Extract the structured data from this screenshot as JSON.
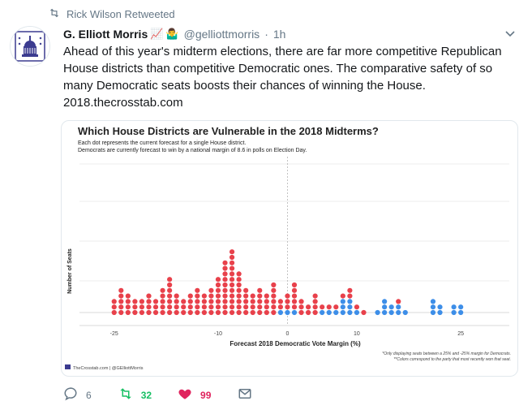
{
  "retweet_banner": {
    "text": "Rick Wilson Retweeted",
    "icon": "retweet-icon"
  },
  "author": {
    "name": "G. Elliott Morris",
    "emojis": [
      "📈",
      "🤷‍♂️"
    ],
    "handle": "@gelliottmorris",
    "separator": "·",
    "time": "1h"
  },
  "tweet": {
    "text": "Ahead of this year's midterm elections, there are far more competitive Republican House districts than competitive Democratic ones. The comparative safety of so many Democratic seats boosts their chances of winning the House.",
    "link": "2018.thecrosstab.com"
  },
  "chart_data": {
    "type": "scatter",
    "title": "Which House Districts are Vulnerable in the 2018 Midterms?",
    "subtitle_lines": [
      "Each dot represents the current forecast for a single House district.",
      "Democrats are currently forecast to win by a national margin of 8.6 in polls on Election Day."
    ],
    "xlabel": "Forecast 2018 Democratic Vote Margin (%)",
    "ylabel": "Number of Seats",
    "xlim": [
      -30,
      32
    ],
    "xticks": [
      -25,
      -10,
      0,
      10,
      25
    ],
    "note_lines": [
      "*Only displaying seats between a 25% and -25% margin for Democrats.",
      "**Colors correspond to the party that most recently won that seat."
    ],
    "source": "TheCrosstab.com | @GElliottMorris",
    "colors": {
      "republican": "#e8414b",
      "democratic": "#3d8ee8",
      "grid": "#e6e6e6",
      "zero_line": "#bbbbbb"
    },
    "columns": [
      {
        "x": -25,
        "red": 3,
        "blue": 0
      },
      {
        "x": -24,
        "red": 5,
        "blue": 0
      },
      {
        "x": -23,
        "red": 4,
        "blue": 0
      },
      {
        "x": -22,
        "red": 3,
        "blue": 0
      },
      {
        "x": -21,
        "red": 3,
        "blue": 0
      },
      {
        "x": -20,
        "red": 4,
        "blue": 0
      },
      {
        "x": -19,
        "red": 3,
        "blue": 0
      },
      {
        "x": -18,
        "red": 5,
        "blue": 0
      },
      {
        "x": -17,
        "red": 7,
        "blue": 0
      },
      {
        "x": -16,
        "red": 4,
        "blue": 0
      },
      {
        "x": -15,
        "red": 3,
        "blue": 0
      },
      {
        "x": -14,
        "red": 4,
        "blue": 0
      },
      {
        "x": -13,
        "red": 5,
        "blue": 0
      },
      {
        "x": -12,
        "red": 4,
        "blue": 0
      },
      {
        "x": -11,
        "red": 5,
        "blue": 0
      },
      {
        "x": -10,
        "red": 7,
        "blue": 0
      },
      {
        "x": -9,
        "red": 10,
        "blue": 0
      },
      {
        "x": -8,
        "red": 12,
        "blue": 0
      },
      {
        "x": -7,
        "red": 8,
        "blue": 0
      },
      {
        "x": -6,
        "red": 5,
        "blue": 0
      },
      {
        "x": -5,
        "red": 4,
        "blue": 0
      },
      {
        "x": -4,
        "red": 5,
        "blue": 0
      },
      {
        "x": -3,
        "red": 4,
        "blue": 0
      },
      {
        "x": -2,
        "red": 6,
        "blue": 0
      },
      {
        "x": -1,
        "red": 2,
        "blue": 1
      },
      {
        "x": 0,
        "red": 3,
        "blue": 1
      },
      {
        "x": 1,
        "red": 5,
        "blue": 1
      },
      {
        "x": 2,
        "red": 3,
        "blue": 0
      },
      {
        "x": 3,
        "red": 2,
        "blue": 0
      },
      {
        "x": 4,
        "red": 4,
        "blue": 0
      },
      {
        "x": 5,
        "red": 1,
        "blue": 1
      },
      {
        "x": 6,
        "red": 1,
        "blue": 1
      },
      {
        "x": 7,
        "red": 1,
        "blue": 1
      },
      {
        "x": 8,
        "red": 1,
        "blue": 3
      },
      {
        "x": 9,
        "red": 2,
        "blue": 3
      },
      {
        "x": 10,
        "red": 1,
        "blue": 1
      },
      {
        "x": 11,
        "red": 1,
        "blue": 0
      },
      {
        "x": 13,
        "red": 0,
        "blue": 1
      },
      {
        "x": 14,
        "red": 0,
        "blue": 3
      },
      {
        "x": 15,
        "red": 0,
        "blue": 2
      },
      {
        "x": 16,
        "red": 1,
        "blue": 2
      },
      {
        "x": 17,
        "red": 0,
        "blue": 1
      },
      {
        "x": 21,
        "red": 0,
        "blue": 3
      },
      {
        "x": 22,
        "red": 0,
        "blue": 2
      },
      {
        "x": 24,
        "red": 0,
        "blue": 2
      },
      {
        "x": 25,
        "red": 0,
        "blue": 2
      }
    ]
  },
  "actions": {
    "reply": {
      "count": "6",
      "icon": "reply-icon"
    },
    "retweet": {
      "count": "32",
      "icon": "retweet-icon"
    },
    "like": {
      "count": "99",
      "icon": "heart-icon"
    },
    "dm": {
      "icon": "envelope-icon"
    }
  }
}
